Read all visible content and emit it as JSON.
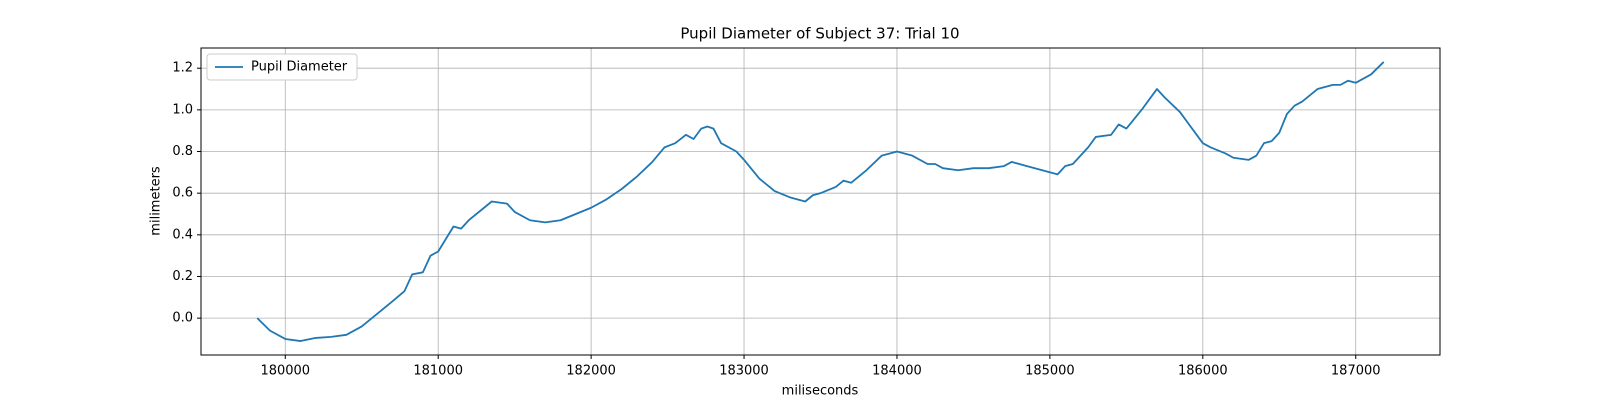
{
  "chart_data": {
    "type": "line",
    "title": "Pupil Diameter of Subject 37: Trial 10",
    "xlabel": "miliseconds",
    "ylabel": "milimeters",
    "x": [
      179817,
      179900,
      180000,
      180100,
      180200,
      180300,
      180400,
      180500,
      180600,
      180700,
      180780,
      180830,
      180900,
      180950,
      181000,
      181050,
      181100,
      181150,
      181200,
      181300,
      181350,
      181450,
      181500,
      181600,
      181700,
      181800,
      181900,
      182000,
      182100,
      182200,
      182300,
      182400,
      182480,
      182550,
      182620,
      182670,
      182720,
      182760,
      182800,
      182850,
      182950,
      183000,
      183100,
      183200,
      183300,
      183400,
      183450,
      183500,
      183600,
      183650,
      183700,
      183800,
      183900,
      184000,
      184100,
      184200,
      184250,
      184300,
      184400,
      184500,
      184600,
      184700,
      184750,
      184850,
      184950,
      185050,
      185100,
      185150,
      185250,
      185300,
      185400,
      185450,
      185500,
      185600,
      185650,
      185700,
      185750,
      185850,
      186000,
      186050,
      186150,
      186200,
      186300,
      186350,
      186400,
      186450,
      186500,
      186550,
      186600,
      186650,
      186700,
      186750,
      186850,
      186900,
      186950,
      187000,
      187100,
      187183
    ],
    "series": [
      {
        "name": "Pupil Diameter",
        "color": "#1f77b4",
        "values": [
          0.0,
          -0.06,
          -0.1,
          -0.11,
          -0.095,
          -0.09,
          -0.08,
          -0.04,
          0.02,
          0.08,
          0.13,
          0.21,
          0.22,
          0.3,
          0.32,
          0.38,
          0.44,
          0.43,
          0.47,
          0.53,
          0.56,
          0.55,
          0.51,
          0.47,
          0.46,
          0.47,
          0.5,
          0.53,
          0.57,
          0.62,
          0.68,
          0.75,
          0.82,
          0.84,
          0.88,
          0.86,
          0.91,
          0.92,
          0.91,
          0.84,
          0.8,
          0.76,
          0.67,
          0.61,
          0.58,
          0.56,
          0.59,
          0.6,
          0.63,
          0.66,
          0.65,
          0.71,
          0.78,
          0.8,
          0.78,
          0.74,
          0.74,
          0.72,
          0.71,
          0.72,
          0.72,
          0.73,
          0.75,
          0.73,
          0.71,
          0.69,
          0.73,
          0.74,
          0.82,
          0.87,
          0.88,
          0.93,
          0.91,
          1.0,
          1.05,
          1.1,
          1.06,
          0.99,
          0.84,
          0.82,
          0.79,
          0.77,
          0.76,
          0.78,
          0.84,
          0.85,
          0.89,
          0.98,
          1.02,
          1.04,
          1.07,
          1.1,
          1.12,
          1.12,
          1.14,
          1.13,
          1.17,
          1.23
        ]
      }
    ],
    "xlim": [
      179449,
      187551
    ],
    "ylim": [
      -0.177,
      1.297
    ],
    "xticks": [
      180000,
      181000,
      182000,
      183000,
      184000,
      185000,
      186000,
      187000
    ],
    "yticks": [
      {
        "value": 0,
        "label": "0.0"
      },
      0.2,
      0.4,
      0.6,
      0.8,
      {
        "value": 1,
        "label": "1.0"
      },
      1.2
    ],
    "grid": true,
    "legend": "upper-left"
  }
}
